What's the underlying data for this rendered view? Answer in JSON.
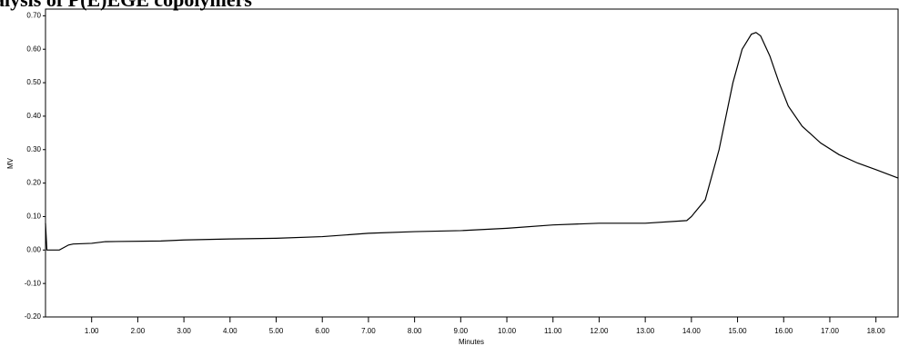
{
  "chart_data": {
    "type": "line",
    "title": "alysis of P(E)EGE copolymers",
    "x_label": "Minutes",
    "y_label": "MV",
    "x": [
      0,
      0.03,
      0.3,
      0.5,
      0.6,
      1.0,
      1.3,
      2.5,
      3.0,
      4.0,
      5.0,
      6.0,
      7.0,
      8.0,
      9.0,
      10.0,
      11.0,
      12.0,
      13.0,
      13.9,
      14.0,
      14.3,
      14.6,
      14.9,
      15.1,
      15.3,
      15.4,
      15.5,
      15.7,
      15.9,
      16.1,
      16.4,
      16.8,
      17.2,
      17.6,
      18.0,
      18.48
    ],
    "series": [
      {
        "name": "MV",
        "color": "#000000",
        "values": [
          0.08,
          0.0,
          0.0,
          0.015,
          0.018,
          0.02,
          0.025,
          0.027,
          0.03,
          0.033,
          0.035,
          0.04,
          0.05,
          0.055,
          0.058,
          0.065,
          0.075,
          0.08,
          0.08,
          0.088,
          0.1,
          0.15,
          0.3,
          0.5,
          0.6,
          0.645,
          0.65,
          0.64,
          0.58,
          0.5,
          0.43,
          0.37,
          0.32,
          0.285,
          0.26,
          0.24,
          0.215
        ]
      }
    ],
    "xlim": [
      0,
      18.48
    ],
    "ylim": [
      -0.2,
      0.72
    ],
    "xticks": [
      {
        "value": 1,
        "label": "1.00"
      },
      {
        "value": 2,
        "label": "2.00"
      },
      {
        "value": 3,
        "label": "3.00"
      },
      {
        "value": 4,
        "label": "4.00"
      },
      {
        "value": 5,
        "label": "5.00"
      },
      {
        "value": 6,
        "label": "6.00"
      },
      {
        "value": 7,
        "label": "7.00"
      },
      {
        "value": 8,
        "label": "8.00"
      },
      {
        "value": 9,
        "label": "9.00"
      },
      {
        "value": 10,
        "label": "10.00"
      },
      {
        "value": 11,
        "label": "11.00"
      },
      {
        "value": 12,
        "label": "12.00"
      },
      {
        "value": 13,
        "label": "13.00"
      },
      {
        "value": 14,
        "label": "14.00"
      },
      {
        "value": 15,
        "label": "15.00"
      },
      {
        "value": 16,
        "label": "16.00"
      },
      {
        "value": 17,
        "label": "17.00"
      },
      {
        "value": 18,
        "label": "18.00"
      }
    ],
    "yticks": [
      {
        "value": -0.2,
        "label": "-0.20"
      },
      {
        "value": -0.1,
        "label": "-0.10"
      },
      {
        "value": 0,
        "label": "0.00"
      },
      {
        "value": 0.1,
        "label": "0.10"
      },
      {
        "value": 0.2,
        "label": "0.20"
      },
      {
        "value": 0.3,
        "label": "0.30"
      },
      {
        "value": 0.4,
        "label": "0.40"
      },
      {
        "value": 0.5,
        "label": "0.50"
      },
      {
        "value": 0.6,
        "label": "0.60"
      },
      {
        "value": 0.7,
        "label": "0.70"
      }
    ],
    "grid": false
  }
}
